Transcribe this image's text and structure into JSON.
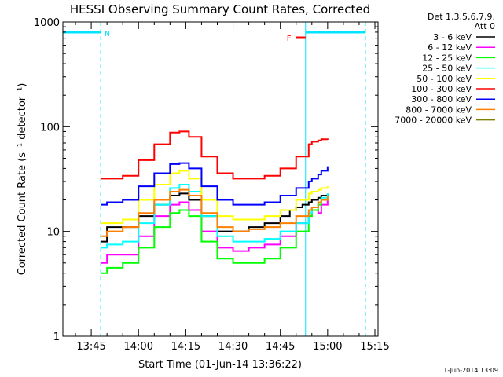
{
  "chart_data": {
    "type": "line",
    "title": "HESSI Observing Summary Count Rates, Corrected",
    "xlabel": "Start Time (01-Jun-14 13:36:22)",
    "ylabel": "Corrected Count Rate (s⁻¹ detector⁻¹)",
    "y_scale": "log",
    "ylim": [
      1,
      1000
    ],
    "y_ticks": [
      {
        "value": 1,
        "label": "1"
      },
      {
        "value": 10,
        "label": "10"
      },
      {
        "value": 100,
        "label": "100"
      },
      {
        "value": 1000,
        "label": "1000"
      }
    ],
    "xlim": [
      "13:36",
      "15:16"
    ],
    "x_ticks": [
      "13:45",
      "14:00",
      "14:15",
      "14:30",
      "14:45",
      "15:00",
      "15:15"
    ],
    "legend_header": [
      "Det 1,3,5,6,7,9,",
      "Att 0"
    ],
    "legend_position": "outside-right",
    "series": [
      {
        "name": "3 - 6 keV",
        "color": "#000000",
        "x": [
          "13:48",
          "13:50",
          "13:55",
          "14:00",
          "14:05",
          "14:10",
          "14:13",
          "14:16",
          "14:20",
          "14:25",
          "14:30",
          "14:35",
          "14:40",
          "14:45",
          "14:48",
          "14:50",
          "14:52",
          "14:54",
          "14:55",
          "14:57",
          "14:58",
          "15:00"
        ],
        "y": [
          8,
          11,
          11,
          14,
          18,
          22,
          23,
          20,
          14,
          10,
          10,
          11,
          12,
          14,
          16,
          17,
          18,
          19,
          20,
          21,
          22,
          23
        ]
      },
      {
        "name": "6 - 12 keV",
        "color": "#ff00ff",
        "x": [
          "13:48",
          "13:50",
          "13:55",
          "14:00",
          "14:05",
          "14:10",
          "14:13",
          "14:16",
          "14:20",
          "14:25",
          "14:30",
          "14:35",
          "14:40",
          "14:45",
          "14:50",
          "14:54",
          "14:55",
          "14:57",
          "14:58",
          "15:00"
        ],
        "y": [
          5,
          6,
          6,
          9,
          14,
          18,
          19,
          16,
          10,
          7,
          6.5,
          7,
          7.5,
          9,
          12,
          14,
          16,
          15,
          18,
          20
        ]
      },
      {
        "name": "12 - 25 keV",
        "color": "#00ff00",
        "x": [
          "13:48",
          "13:50",
          "13:55",
          "14:00",
          "14:05",
          "14:10",
          "14:13",
          "14:16",
          "14:20",
          "14:25",
          "14:30",
          "14:35",
          "14:40",
          "14:45",
          "14:50",
          "14:54",
          "14:55",
          "14:57",
          "14:58",
          "15:00"
        ],
        "y": [
          4,
          4.5,
          5,
          7,
          11,
          15,
          16,
          14,
          8,
          5.5,
          5,
          5,
          5.5,
          7,
          10,
          14,
          16,
          18,
          20,
          22
        ]
      },
      {
        "name": "25 - 50 keV",
        "color": "#00ffff",
        "x": [
          "13:48",
          "13:50",
          "13:55",
          "14:00",
          "14:05",
          "14:10",
          "14:13",
          "14:16",
          "14:20",
          "14:25",
          "14:30",
          "14:35",
          "14:40",
          "14:45",
          "14:50",
          "14:54",
          "14:55",
          "14:57",
          "14:58",
          "15:00"
        ],
        "y": [
          7,
          7.5,
          8,
          12,
          18,
          26,
          28,
          24,
          14,
          9,
          8,
          8,
          8.5,
          10,
          12,
          15,
          17,
          19,
          21,
          23
        ]
      },
      {
        "name": "50 - 100 keV",
        "color": "#ffff00",
        "x": [
          "13:48",
          "13:50",
          "13:55",
          "14:00",
          "14:05",
          "14:10",
          "14:13",
          "14:16",
          "14:20",
          "14:25",
          "14:30",
          "14:35",
          "14:40",
          "14:45",
          "14:50",
          "14:54",
          "14:55",
          "14:57",
          "14:58",
          "15:00"
        ],
        "y": [
          12,
          12,
          13,
          20,
          28,
          36,
          38,
          32,
          20,
          14,
          13,
          13,
          14,
          16,
          20,
          23,
          24,
          25,
          26,
          27
        ]
      },
      {
        "name": "100 - 300 keV",
        "color": "#ff0000",
        "x": [
          "13:48",
          "13:50",
          "13:55",
          "14:00",
          "14:05",
          "14:10",
          "14:13",
          "14:16",
          "14:20",
          "14:25",
          "14:30",
          "14:35",
          "14:40",
          "14:45",
          "14:50",
          "14:54",
          "14:55",
          "14:57",
          "14:58",
          "15:00"
        ],
        "y": [
          32,
          32,
          34,
          48,
          68,
          88,
          90,
          80,
          52,
          36,
          32,
          32,
          34,
          40,
          52,
          68,
          72,
          74,
          76,
          75
        ]
      },
      {
        "name": "300 - 800 keV",
        "color": "#0000ff",
        "x": [
          "13:48",
          "13:50",
          "13:55",
          "14:00",
          "14:05",
          "14:10",
          "14:13",
          "14:16",
          "14:20",
          "14:25",
          "14:30",
          "14:35",
          "14:40",
          "14:45",
          "14:50",
          "14:54",
          "14:55",
          "14:57",
          "14:58",
          "15:00"
        ],
        "y": [
          18,
          19,
          20,
          27,
          36,
          44,
          45,
          40,
          27,
          20,
          18,
          18,
          19,
          22,
          26,
          30,
          32,
          35,
          38,
          42
        ]
      },
      {
        "name": "800 - 7000 keV",
        "color": "#ff8000",
        "x": [
          "13:48",
          "13:50",
          "13:55",
          "14:00",
          "14:05",
          "14:10",
          "14:13",
          "14:16",
          "14:20",
          "14:25",
          "14:30",
          "14:35",
          "14:40",
          "14:45",
          "14:50",
          "14:54",
          "14:55",
          "14:57",
          "14:58",
          "15:00"
        ],
        "y": [
          9,
          10,
          11,
          15,
          20,
          24,
          25,
          22,
          15,
          11,
          10,
          10.5,
          11,
          12,
          14,
          16,
          17,
          19,
          20,
          22
        ]
      },
      {
        "name": "7000 - 20000 keV",
        "color": "#808000",
        "x": [],
        "y": []
      }
    ],
    "annotations": {
      "night_label": "N",
      "flare_label": "F",
      "night_bars": [
        [
          "13:36",
          "13:48"
        ],
        [
          "14:53",
          "15:12"
        ]
      ],
      "flare_bar": [
        "14:50",
        "14:53"
      ],
      "saa_verticals": [
        "13:36",
        "13:48",
        "14:53",
        "15:12"
      ]
    },
    "footer_timestamp": "1-Jun-2014 13:09"
  }
}
